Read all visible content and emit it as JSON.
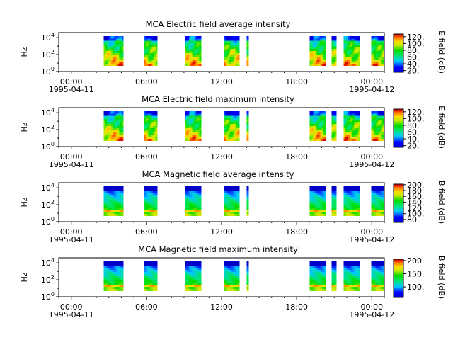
{
  "chart_data": [
    {
      "type": "heatmap",
      "title": "MCA  Electric field average intensity",
      "ylabel": "Hz",
      "colorbar_label": "E field (dB)",
      "colorbar_ticks": [
        "20.",
        "40.",
        "60.",
        "80.",
        "100.",
        "120."
      ],
      "colorbar_range": [
        15,
        128
      ],
      "colormap": "rainbow-blue-to-red",
      "ylim_log10": [
        0,
        4.6
      ],
      "yticks": [
        {
          "base": "10",
          "exp": "0",
          "value": 0
        },
        {
          "base": "10",
          "exp": "2",
          "value": 2
        },
        {
          "base": "10",
          "exp": "4",
          "value": 4
        }
      ],
      "x_range_hours": [
        -1,
        25
      ],
      "xticks": [
        {
          "label": "00:00",
          "value": 0
        },
        {
          "label": "06:00",
          "value": 6
        },
        {
          "label": "12:00",
          "value": 12
        },
        {
          "label": "18:00",
          "value": 18
        },
        {
          "label": "00:00",
          "value": 24
        }
      ],
      "date_labels": [
        {
          "label": "1995-04-11",
          "value": 0
        },
        {
          "label": "1995-04-12",
          "value": 24
        }
      ],
      "freq_range_log10": [
        0.7,
        4.2
      ],
      "data_intervals_hours": [
        [
          2.6,
          4.15
        ],
        [
          5.8,
          6.85
        ],
        [
          9.05,
          10.35
        ],
        [
          12.2,
          13.4
        ],
        [
          14.0,
          14.15
        ],
        [
          19.05,
          20.35
        ],
        [
          20.8,
          21.15
        ],
        [
          21.75,
          23.05
        ],
        [
          23.95,
          24.95
        ]
      ]
    },
    {
      "type": "heatmap",
      "title": "MCA  Electric field maximum intensity",
      "ylabel": "Hz",
      "colorbar_label": "E field (dB)",
      "colorbar_ticks": [
        "20.",
        "40.",
        "60.",
        "80.",
        "100.",
        "120."
      ],
      "colorbar_range": [
        15,
        128
      ],
      "colormap": "rainbow-blue-to-red",
      "ylim_log10": [
        0,
        4.6
      ],
      "yticks": [
        {
          "base": "10",
          "exp": "0",
          "value": 0
        },
        {
          "base": "10",
          "exp": "2",
          "value": 2
        },
        {
          "base": "10",
          "exp": "4",
          "value": 4
        }
      ],
      "x_range_hours": [
        -1,
        25
      ],
      "xticks": [
        {
          "label": "00:00",
          "value": 0
        },
        {
          "label": "06:00",
          "value": 6
        },
        {
          "label": "12:00",
          "value": 12
        },
        {
          "label": "18:00",
          "value": 18
        },
        {
          "label": "00:00",
          "value": 24
        }
      ],
      "date_labels": [
        {
          "label": "1995-04-11",
          "value": 0
        },
        {
          "label": "1995-04-12",
          "value": 24
        }
      ],
      "freq_range_log10": [
        0.7,
        4.2
      ],
      "data_intervals_hours": [
        [
          2.6,
          4.15
        ],
        [
          5.8,
          6.85
        ],
        [
          9.05,
          10.35
        ],
        [
          12.2,
          13.4
        ],
        [
          14.0,
          14.15
        ],
        [
          19.05,
          20.35
        ],
        [
          20.8,
          21.15
        ],
        [
          21.75,
          23.05
        ],
        [
          23.95,
          24.95
        ]
      ]
    },
    {
      "type": "heatmap",
      "title": "MCA  Magnetic field average intensity",
      "ylabel": "Hz",
      "colorbar_label": "B field (dB)",
      "colorbar_ticks": [
        "80.",
        "100.",
        "120.",
        "140.",
        "160.",
        "180.",
        "200."
      ],
      "colorbar_range": [
        70,
        202
      ],
      "colormap": "rainbow-blue-to-red",
      "ylim_log10": [
        0,
        4.6
      ],
      "yticks": [
        {
          "base": "10",
          "exp": "0",
          "value": 0
        },
        {
          "base": "10",
          "exp": "2",
          "value": 2
        },
        {
          "base": "10",
          "exp": "4",
          "value": 4
        }
      ],
      "x_range_hours": [
        -1,
        25
      ],
      "xticks": [
        {
          "label": "00:00",
          "value": 0
        },
        {
          "label": "06:00",
          "value": 6
        },
        {
          "label": "12:00",
          "value": 12
        },
        {
          "label": "18:00",
          "value": 18
        },
        {
          "label": "00:00",
          "value": 24
        }
      ],
      "date_labels": [
        {
          "label": "1995-04-11",
          "value": 0
        },
        {
          "label": "1995-04-12",
          "value": 24
        }
      ],
      "freq_range_log10": [
        0.7,
        4.2
      ],
      "data_intervals_hours": [
        [
          2.6,
          4.15
        ],
        [
          5.8,
          6.85
        ],
        [
          9.05,
          10.35
        ],
        [
          12.2,
          13.4
        ],
        [
          14.0,
          14.15
        ],
        [
          19.05,
          20.35
        ],
        [
          20.8,
          21.15
        ],
        [
          21.75,
          23.05
        ],
        [
          23.95,
          24.95
        ]
      ]
    },
    {
      "type": "heatmap",
      "title": "MCA  Magnetic field maximum intensity",
      "ylabel": "Hz",
      "colorbar_label": "B field (dB)",
      "colorbar_ticks": [
        "100.",
        "150.",
        "200."
      ],
      "colorbar_range": [
        60,
        205
      ],
      "colormap": "rainbow-blue-to-red",
      "ylim_log10": [
        0,
        4.6
      ],
      "yticks": [
        {
          "base": "10",
          "exp": "0",
          "value": 0
        },
        {
          "base": "10",
          "exp": "2",
          "value": 2
        },
        {
          "base": "10",
          "exp": "4",
          "value": 4
        }
      ],
      "x_range_hours": [
        -1,
        25
      ],
      "xticks": [
        {
          "label": "00:00",
          "value": 0
        },
        {
          "label": "06:00",
          "value": 6
        },
        {
          "label": "12:00",
          "value": 12
        },
        {
          "label": "18:00",
          "value": 18
        },
        {
          "label": "00:00",
          "value": 24
        }
      ],
      "date_labels": [
        {
          "label": "1995-04-11",
          "value": 0
        },
        {
          "label": "1995-04-12",
          "value": 24
        }
      ],
      "freq_range_log10": [
        0.7,
        4.2
      ],
      "data_intervals_hours": [
        [
          2.6,
          4.15
        ],
        [
          5.8,
          6.85
        ],
        [
          9.05,
          10.35
        ],
        [
          12.2,
          13.4
        ],
        [
          14.0,
          14.15
        ],
        [
          19.05,
          20.35
        ],
        [
          20.8,
          21.15
        ],
        [
          21.75,
          23.05
        ],
        [
          23.95,
          24.95
        ]
      ]
    }
  ]
}
